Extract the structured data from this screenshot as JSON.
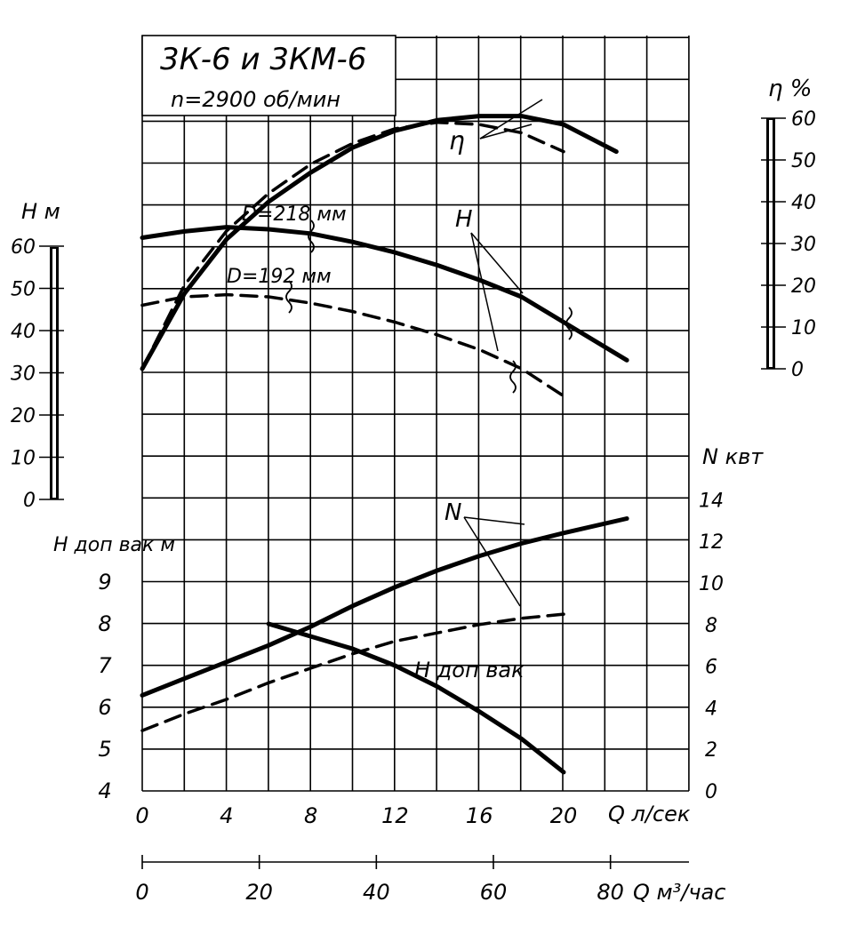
{
  "chart_data": {
    "type": "line",
    "title": "3К-6 и 3КМ-6",
    "subtitle": "n=2900 об/мин",
    "xlabel_primary": "Q л/сек",
    "xlabel_secondary": "Q м³/час",
    "x_range": [
      0,
      20
    ],
    "x_ticks": [
      "0",
      "4",
      "8",
      "12",
      "16",
      "20"
    ],
    "x_secondary_range": [
      0,
      80
    ],
    "x_secondary_ticks": [
      "0",
      "20",
      "40",
      "60",
      "80"
    ],
    "axis_H": {
      "label": "H м",
      "range": [
        0,
        60
      ],
      "ticks": [
        "0",
        "10",
        "20",
        "30",
        "40",
        "50",
        "60"
      ]
    },
    "axis_eta": {
      "label": "η %",
      "range": [
        0,
        60
      ],
      "ticks": [
        "0",
        "10",
        "20",
        "30",
        "40",
        "50",
        "60"
      ]
    },
    "axis_N": {
      "label": "N квт",
      "range": [
        0,
        14
      ],
      "ticks": [
        "0",
        "2",
        "4",
        "6",
        "8",
        "10",
        "12",
        "14"
      ]
    },
    "axis_Hvak": {
      "label": "H доп вак м",
      "range": [
        4,
        9
      ],
      "ticks": [
        "4",
        "5",
        "6",
        "7",
        "8",
        "9"
      ]
    },
    "curve_labels": {
      "eta": "η",
      "H": "H",
      "N": "N",
      "Hvak": "H доп вак",
      "D218": "D=218 мм",
      "D192": "D=192 мм"
    },
    "grid": true,
    "series": [
      {
        "curve": "H",
        "D": "218 мм",
        "style": "solid",
        "x": [
          0,
          2,
          4,
          6,
          8,
          10,
          12,
          14,
          16,
          18,
          20,
          23
        ],
        "y": [
          62,
          63.5,
          64.5,
          64,
          63,
          61,
          58.5,
          55.5,
          52,
          48,
          42,
          33
        ]
      },
      {
        "curve": "H",
        "D": "192 мм",
        "style": "dashed",
        "x": [
          0,
          2,
          4,
          6,
          8,
          10,
          12,
          14,
          16,
          18,
          20
        ],
        "y": [
          46,
          48,
          48.5,
          48,
          46.5,
          44.5,
          42,
          39,
          35.5,
          31,
          24.5
        ]
      },
      {
        "curve": "η",
        "D": "218 мм",
        "style": "solid",
        "x": [
          0,
          2,
          4,
          6,
          8,
          10,
          12,
          14,
          16,
          18,
          20,
          22.5
        ],
        "y": [
          0,
          18,
          31,
          40,
          47,
          53,
          57,
          59.5,
          60.5,
          60.5,
          58.5,
          52
        ]
      },
      {
        "curve": "η",
        "D": "192 мм",
        "style": "dashed",
        "x": [
          0,
          2,
          4,
          6,
          8,
          10,
          12,
          14,
          16,
          18,
          20
        ],
        "y": [
          0,
          20,
          33,
          42,
          49,
          54,
          57.5,
          59,
          58.5,
          56.5,
          52
        ]
      },
      {
        "curve": "N",
        "D": "218 мм",
        "style": "solid",
        "x": [
          0,
          2,
          4,
          6,
          8,
          10,
          12,
          14,
          16,
          18,
          20,
          23
        ],
        "y": [
          4.6,
          5.4,
          6.2,
          7,
          7.9,
          8.9,
          9.8,
          10.6,
          11.3,
          11.9,
          12.4,
          13.1
        ]
      },
      {
        "curve": "N",
        "D": "192 мм",
        "style": "dashed",
        "x": [
          0,
          2,
          4,
          6,
          8,
          10,
          12,
          14,
          16,
          18,
          20
        ],
        "y": [
          2.9,
          3.7,
          4.4,
          5.2,
          5.9,
          6.6,
          7.2,
          7.6,
          8,
          8.3,
          8.5
        ]
      },
      {
        "curve": "Hvak",
        "D": "",
        "style": "solid",
        "x": [
          6,
          8,
          10,
          12,
          14,
          16,
          18,
          20
        ],
        "y": [
          8,
          7.7,
          7.4,
          7.0,
          6.5,
          5.9,
          5.25,
          4.45
        ]
      }
    ]
  }
}
